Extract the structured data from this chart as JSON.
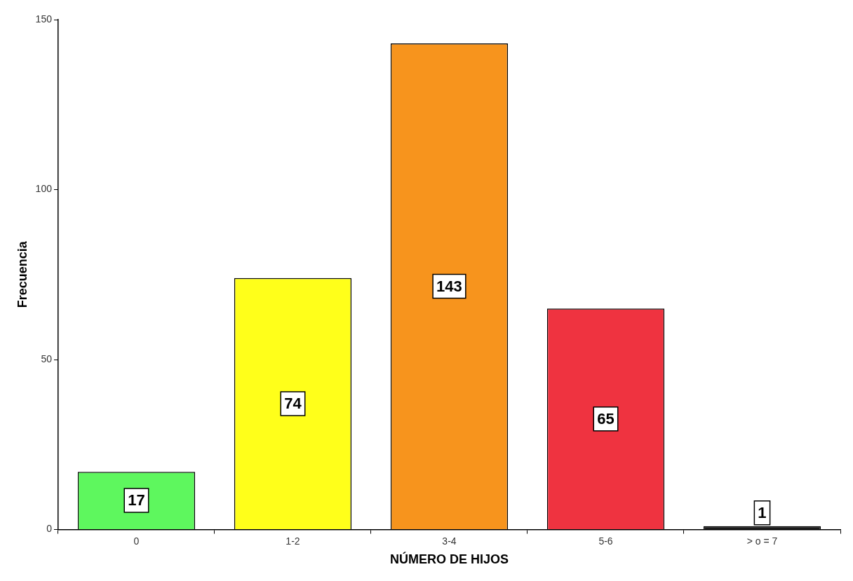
{
  "chart_data": {
    "type": "bar",
    "xlabel": "NÚMERO DE HIJOS",
    "ylabel": "Frecuencia",
    "categories": [
      "0",
      "1-2",
      "3-4",
      "5-6",
      "> o = 7"
    ],
    "values": [
      17,
      74,
      143,
      65,
      1
    ],
    "colors": [
      "#5ef75e",
      "#ffff1a",
      "#f7941d",
      "#ef3340",
      "#1a1a1a"
    ],
    "ylim": [
      0,
      150
    ],
    "yticks": [
      0,
      50,
      100,
      150
    ],
    "grid": false,
    "legend": false,
    "data_labels": true
  }
}
